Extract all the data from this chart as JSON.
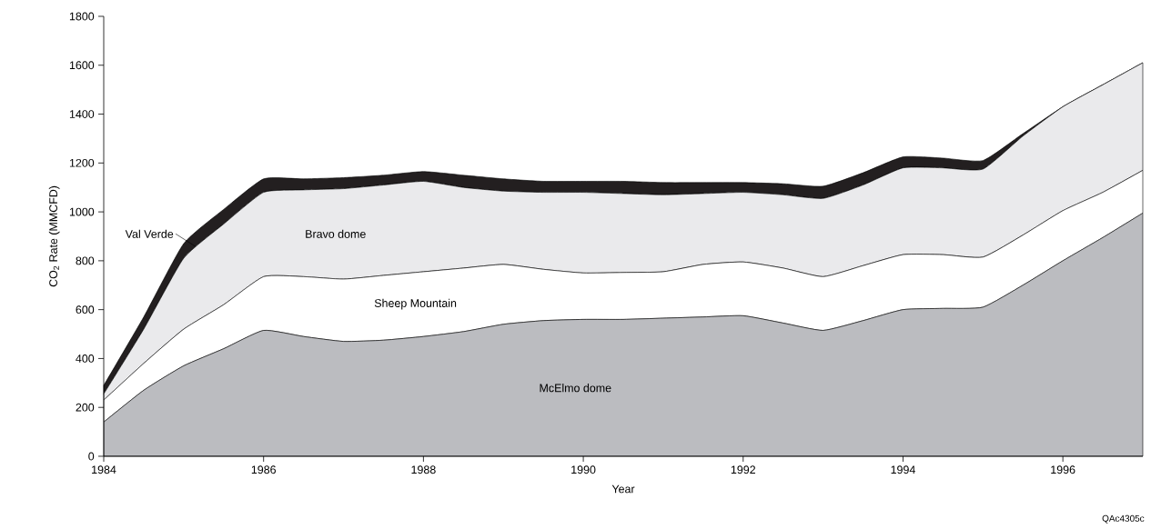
{
  "chart_data": {
    "type": "area",
    "stacked": true,
    "xlabel": "Year",
    "ylabel": "CO$_{2}$ Rate (MMCFD)",
    "annotations": [
      "QAc4305c"
    ],
    "xlim": [
      1984,
      1997
    ],
    "ylim": [
      0,
      1800
    ],
    "xticks": [
      1984,
      1986,
      1988,
      1990,
      1992,
      1994,
      1996
    ],
    "yticks": [
      0,
      200,
      400,
      600,
      800,
      1000,
      1200,
      1400,
      1600,
      1800
    ],
    "x": [
      1984,
      1984.5,
      1985,
      1985.5,
      1986,
      1986.5,
      1987,
      1987.5,
      1988,
      1988.5,
      1989,
      1989.5,
      1990,
      1990.5,
      1991,
      1991.5,
      1992,
      1992.5,
      1993,
      1993.5,
      1994,
      1994.5,
      1995,
      1995.5,
      1996,
      1996.5,
      1997
    ],
    "series": [
      {
        "name": "McElmo dome",
        "color": "#bbbcc0",
        "values": [
          140,
          270,
          370,
          440,
          515,
          490,
          470,
          475,
          490,
          510,
          540,
          555,
          560,
          560,
          565,
          570,
          575,
          545,
          515,
          555,
          600,
          605,
          610,
          700,
          800,
          895,
          995
        ]
      },
      {
        "name": "Sheep Mountain",
        "color": "#ffffff",
        "values": [
          90,
          110,
          150,
          180,
          220,
          245,
          255,
          265,
          265,
          260,
          245,
          210,
          190,
          192,
          190,
          215,
          220,
          225,
          220,
          225,
          225,
          220,
          205,
          205,
          205,
          185,
          175
        ]
      },
      {
        "name": "Bravo dome",
        "color": "#eaeaec",
        "values": [
          25,
          140,
          290,
          330,
          345,
          355,
          370,
          370,
          370,
          330,
          300,
          315,
          330,
          323,
          315,
          290,
          285,
          300,
          320,
          330,
          355,
          355,
          360,
          405,
          425,
          440,
          440
        ]
      },
      {
        "name": "Val Verde",
        "color": "#231f20",
        "values": [
          35,
          50,
          60,
          60,
          55,
          45,
          45,
          40,
          40,
          50,
          50,
          45,
          45,
          50,
          50,
          45,
          40,
          45,
          50,
          50,
          45,
          40,
          35,
          10,
          0,
          0,
          0
        ]
      }
    ]
  }
}
